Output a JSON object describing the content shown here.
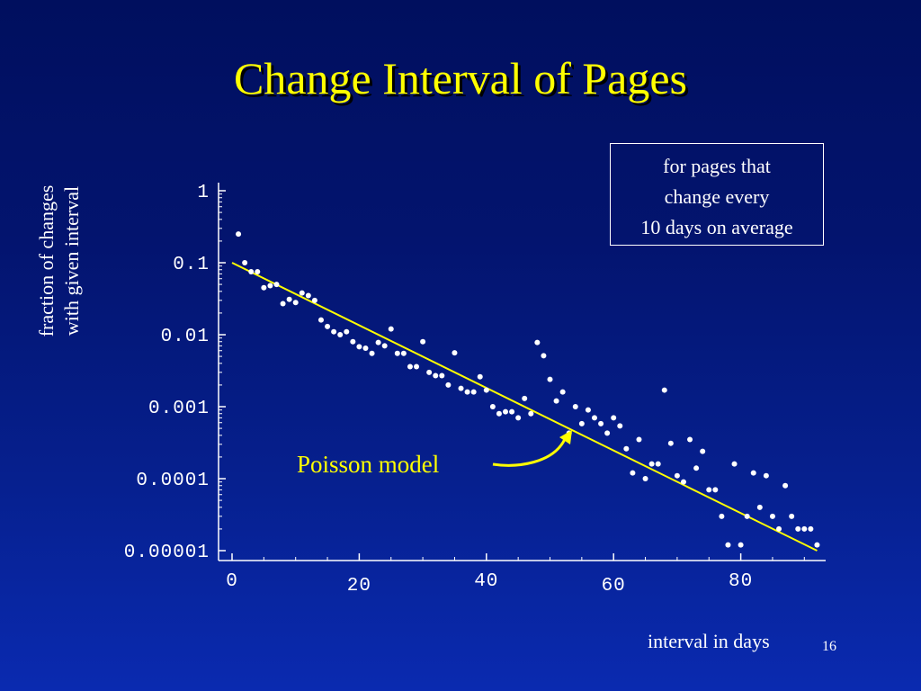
{
  "slide": {
    "title": "Change Interval of Pages",
    "page_number": "16",
    "legend_lines": [
      "for pages that",
      "change every",
      "10 days on average"
    ],
    "annotation": "Poisson model"
  },
  "colors": {
    "background": "#06208f",
    "title": "#ffff00",
    "points": "#ffffff",
    "fit_line": "#ffff00",
    "axes": "#ffffff"
  },
  "chart_data": {
    "type": "scatter",
    "xlabel": "interval in days",
    "ylabel": [
      "fraction of changes",
      "with given interval"
    ],
    "xscale": "linear",
    "yscale": "log",
    "xlim": [
      -2,
      94
    ],
    "ylim": [
      1e-05,
      1
    ],
    "x_ticks": [
      0,
      20,
      40,
      60,
      80
    ],
    "x_tick_labels": [
      "0",
      "20",
      "40",
      "60",
      "80"
    ],
    "y_ticks": [
      1,
      0.1,
      0.01,
      0.001,
      0.0001,
      1e-05
    ],
    "y_tick_labels": [
      "1",
      "0.1",
      "0.01",
      "0.001",
      "0.0001",
      "0.00001"
    ],
    "series": [
      {
        "kind": "points",
        "x": [
          1,
          2,
          3,
          4,
          5,
          6,
          7,
          8,
          9,
          10,
          11,
          12,
          13,
          14,
          15,
          16,
          17,
          18,
          19,
          20,
          21,
          22,
          23,
          24,
          25,
          26,
          27,
          28,
          29,
          30,
          31,
          32,
          33,
          34,
          35,
          36,
          37,
          38,
          39,
          40,
          41,
          42,
          43,
          44,
          45,
          46,
          47,
          48,
          49,
          50,
          51,
          52,
          53,
          54,
          55,
          56,
          57,
          58,
          59,
          60,
          61,
          62,
          63,
          64,
          65,
          66,
          67,
          68,
          69,
          70,
          71,
          72,
          73,
          74,
          75,
          76,
          77,
          78,
          79,
          80,
          81,
          82,
          83,
          84,
          85,
          86,
          87,
          88,
          89,
          90,
          91,
          92
        ],
        "y": [
          0.25,
          0.1,
          0.075,
          0.075,
          0.045,
          0.048,
          0.05,
          0.027,
          0.031,
          0.028,
          0.038,
          0.035,
          0.03,
          0.016,
          0.013,
          0.011,
          0.01,
          0.011,
          0.008,
          0.0068,
          0.0065,
          0.0055,
          0.0078,
          0.007,
          0.012,
          0.0055,
          0.0055,
          0.0036,
          0.0036,
          0.008,
          0.003,
          0.0027,
          0.0027,
          0.002,
          0.0056,
          0.0018,
          0.0016,
          0.0016,
          0.0026,
          0.0017,
          0.001,
          0.0008,
          0.00085,
          0.00085,
          0.0007,
          0.0013,
          0.0008,
          0.0078,
          0.0051,
          0.0024,
          0.0012,
          0.0016,
          0.00043,
          0.001,
          0.00058,
          0.0009,
          0.0007,
          0.00058,
          0.00043,
          0.0007,
          0.00054,
          0.00026,
          0.00012,
          0.00035,
          0.0001,
          0.00016,
          0.00016,
          0.0017,
          0.00031,
          0.00011,
          9e-05,
          0.00035,
          0.00014,
          0.00024,
          7e-05,
          7e-05,
          3e-05,
          1.2e-05,
          0.00016,
          1.2e-05,
          3e-05,
          0.00012,
          4e-05,
          0.00011,
          3e-05,
          2e-05,
          8e-05,
          3e-05,
          2e-05,
          2e-05,
          2e-05,
          1.2e-05
        ]
      },
      {
        "kind": "line",
        "name": "Poisson model",
        "x": [
          0,
          92
        ],
        "y": [
          0.1,
          1e-05
        ]
      }
    ]
  }
}
